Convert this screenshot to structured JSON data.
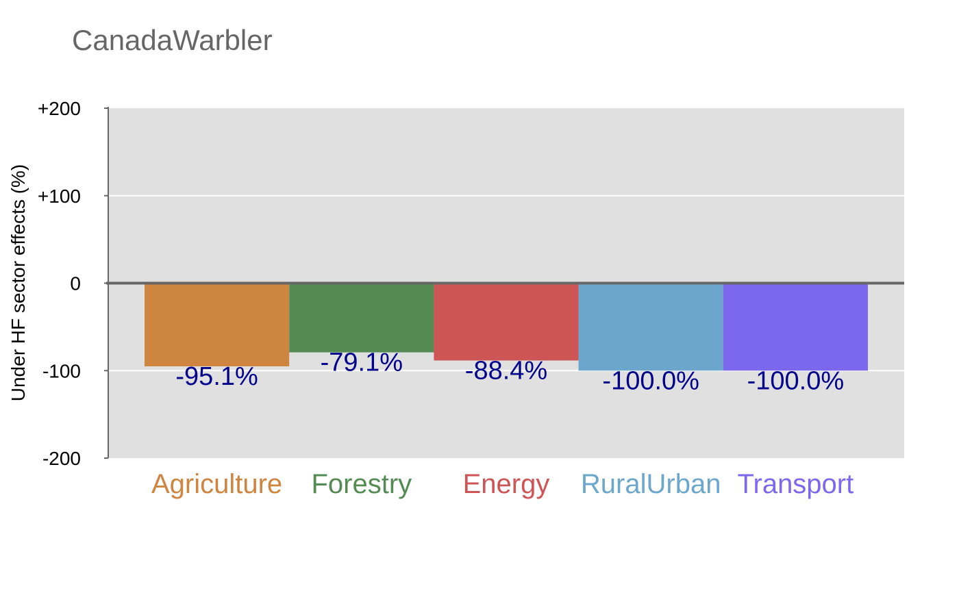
{
  "chart_data": {
    "type": "bar",
    "title": "CanadaWarbler",
    "xlabel": "",
    "ylabel": "Under HF sector effects (%)",
    "ylim": [
      -200,
      200
    ],
    "y_ticks": [
      {
        "value": 200,
        "label": "+200"
      },
      {
        "value": 100,
        "label": "+100"
      },
      {
        "value": 0,
        "label": "0"
      },
      {
        "value": -100,
        "label": "-100"
      },
      {
        "value": -200,
        "label": "-200"
      }
    ],
    "grid": true,
    "categories": [
      "Agriculture",
      "Forestry",
      "Energy",
      "RuralUrban",
      "Transport"
    ],
    "values": [
      -95.1,
      -79.1,
      -88.4,
      -100.0,
      -100.0
    ],
    "value_labels": [
      "-95.1%",
      "-79.1%",
      "-88.4%",
      "-100.0%",
      "-100.0%"
    ],
    "colors": [
      "#cd853f",
      "#548b54",
      "#cd5555",
      "#6ca6cd",
      "#7b68ee"
    ],
    "panel_background": "#e0e0e0"
  }
}
